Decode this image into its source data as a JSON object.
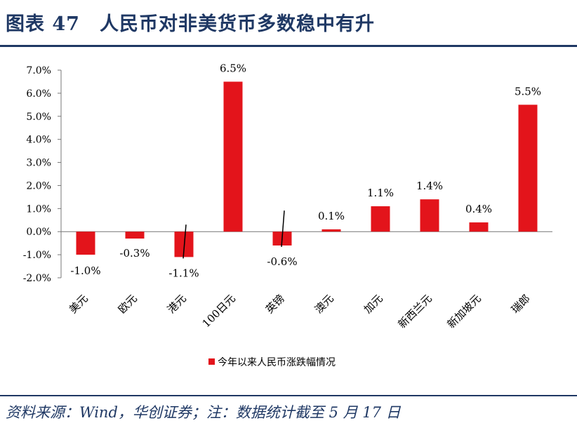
{
  "header": {
    "title": "图表 47　人民币对非美货币多数稳中有升"
  },
  "footer": {
    "source": "资料来源：Wind，华创证券；注：数据统计截至 5 月 17 日"
  },
  "colors": {
    "accent": "#1f3864",
    "bar": "#e3141b"
  },
  "chart_data": {
    "type": "bar",
    "title": "",
    "xlabel": "",
    "ylabel": "",
    "categories": [
      "美元",
      "欧元",
      "港元",
      "100日元",
      "英镑",
      "澳元",
      "加元",
      "新西兰元",
      "新加坡元",
      "瑞郎"
    ],
    "series": [
      {
        "name": "今年以来人民币涨跌幅情况",
        "values": [
          -1.0,
          -0.3,
          -1.1,
          6.5,
          -0.6,
          0.1,
          1.1,
          1.4,
          0.4,
          5.5
        ]
      }
    ],
    "data_labels": [
      "-1.0%",
      "-0.3%",
      "-1.1%",
      "6.5%",
      "-0.6%",
      "0.1%",
      "1.1%",
      "1.4%",
      "0.4%",
      "5.5%"
    ],
    "yticks": [
      "-2.0%",
      "-1.0%",
      "0.0%",
      "1.0%",
      "2.0%",
      "3.0%",
      "4.0%",
      "5.0%",
      "6.0%",
      "7.0%"
    ],
    "ylim": [
      -2.0,
      7.0
    ],
    "legend_position": "bottom",
    "grid": false
  }
}
